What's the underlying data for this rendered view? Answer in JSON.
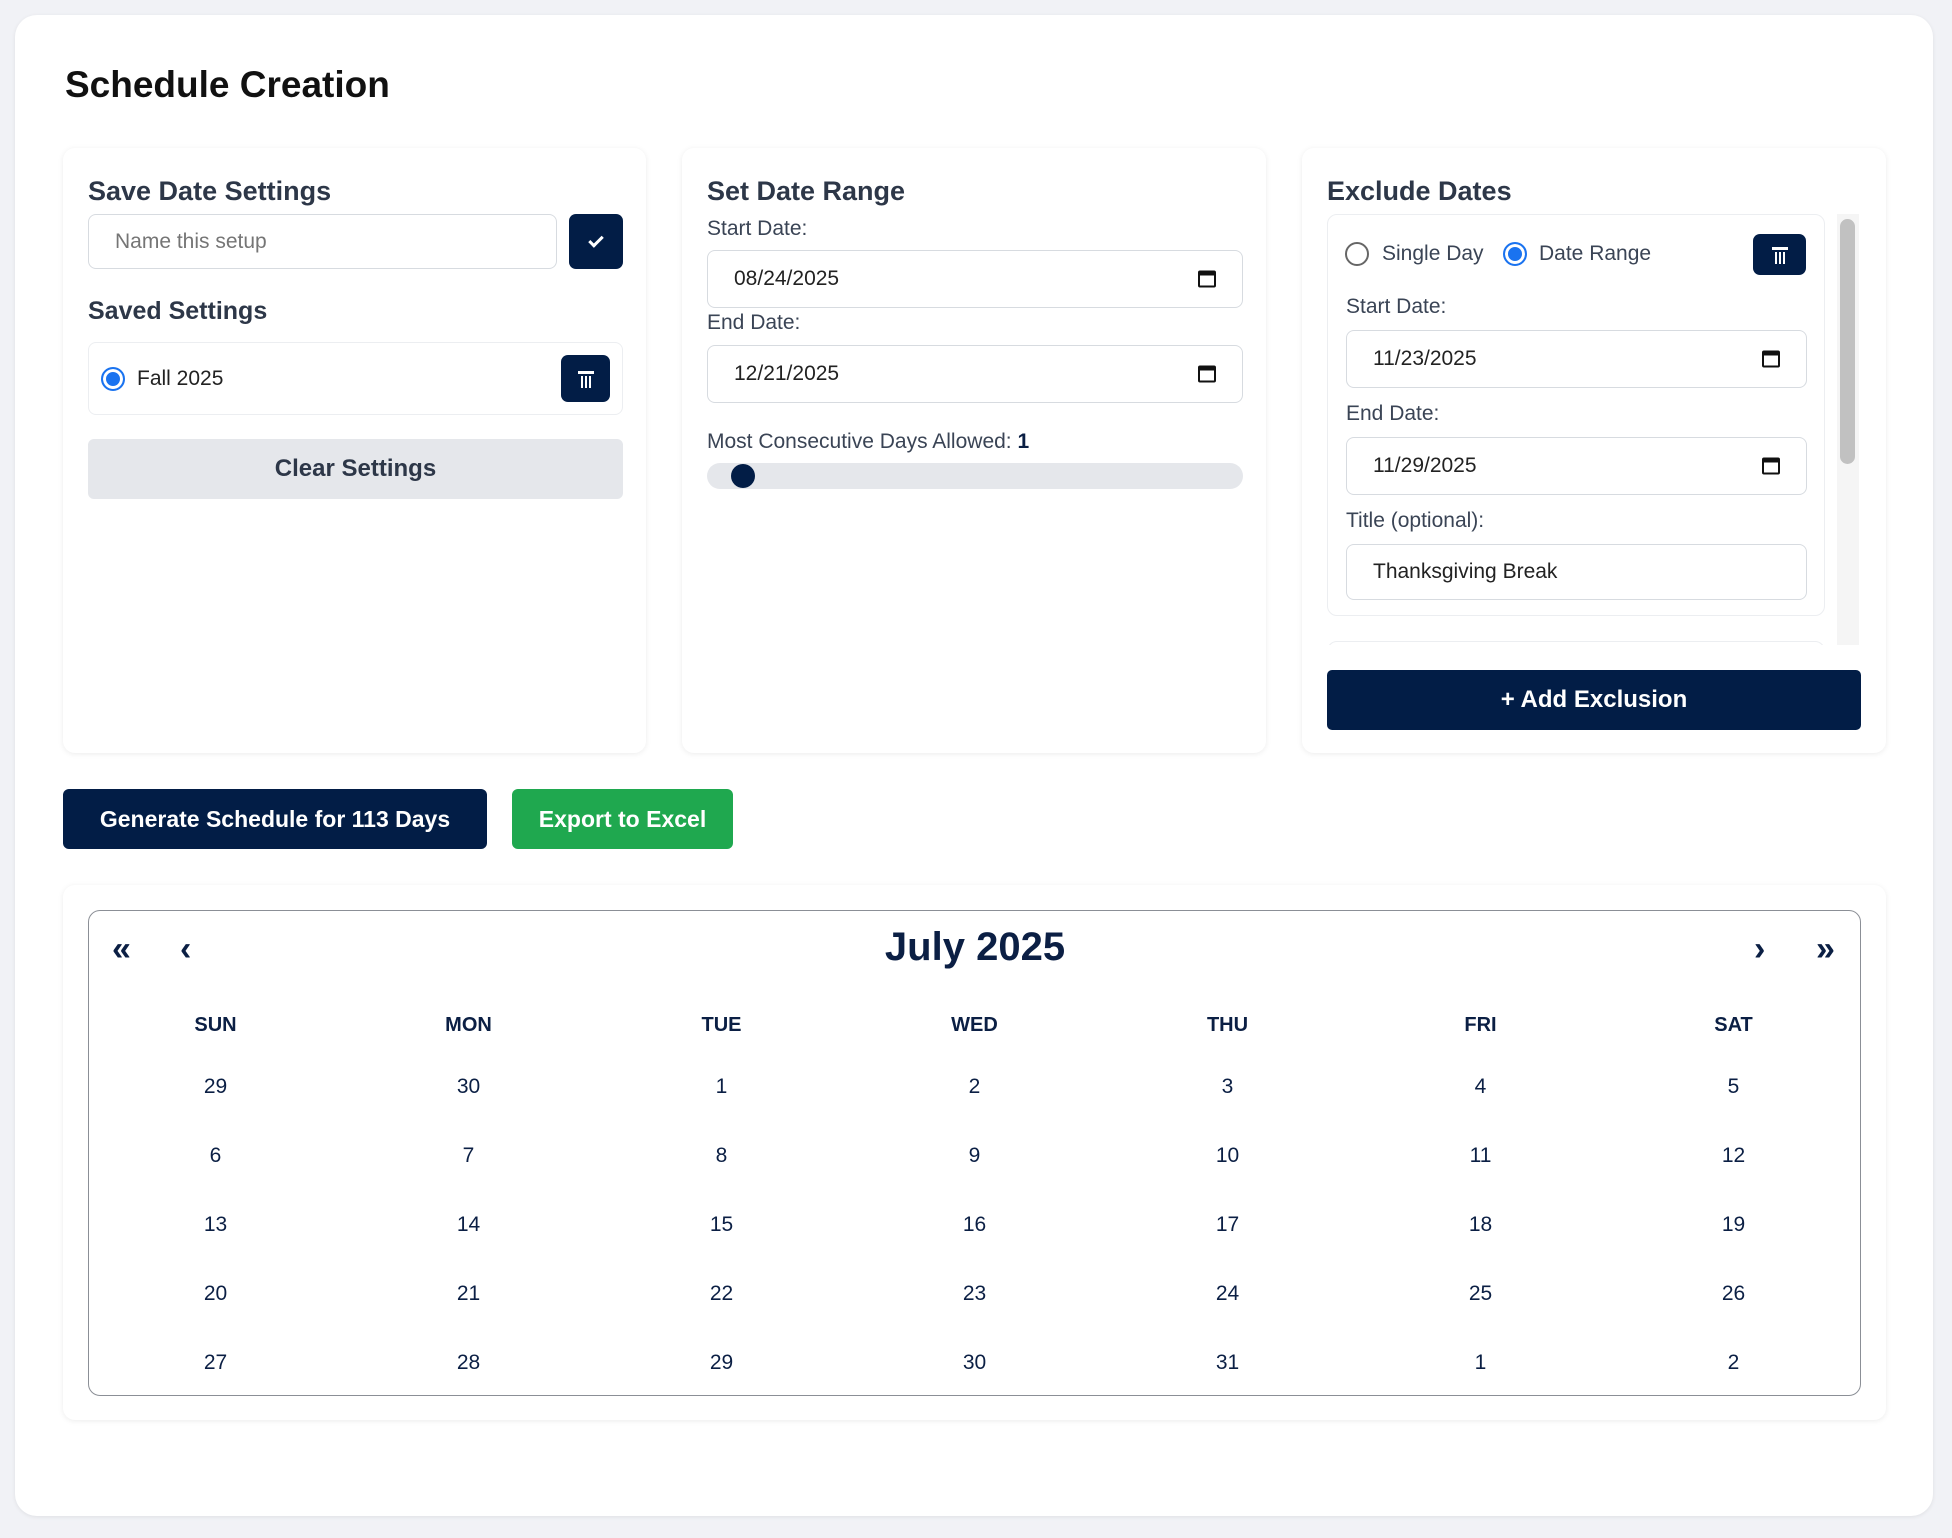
{
  "page_title": "Schedule Creation",
  "save_settings": {
    "heading": "Save Date Settings",
    "name_placeholder": "Name this setup",
    "name_value": "",
    "saved_heading": "Saved Settings",
    "saved_items": [
      {
        "label": "Fall 2025",
        "selected": true
      }
    ],
    "clear_label": "Clear Settings"
  },
  "date_range": {
    "heading": "Set Date Range",
    "start_label": "Start Date:",
    "start_value": "08/24/2025",
    "end_label": "End Date:",
    "end_value": "12/21/2025",
    "consecutive_label": "Most Consecutive Days Allowed:",
    "consecutive_value": "1",
    "slider_fraction": 0.0
  },
  "exclude": {
    "heading": "Exclude Dates",
    "mode_single": "Single Day",
    "mode_range": "Date Range",
    "selected_mode": "Date Range",
    "start_label": "Start Date:",
    "start_value": "11/23/2025",
    "end_label": "End Date:",
    "end_value": "11/29/2025",
    "title_label": "Title (optional):",
    "title_value": "Thanksgiving Break",
    "add_label": "+ Add Exclusion"
  },
  "actions": {
    "generate_label": "Generate Schedule for 113 Days",
    "export_label": "Export to Excel"
  },
  "calendar": {
    "month_label": "July 2025",
    "prev_year": "«",
    "prev_month": "‹",
    "next_month": "›",
    "next_year": "»",
    "weekdays": [
      "SUN",
      "MON",
      "TUE",
      "WED",
      "THU",
      "FRI",
      "SAT"
    ],
    "weeks": [
      [
        "29",
        "30",
        "1",
        "2",
        "3",
        "4",
        "5"
      ],
      [
        "6",
        "7",
        "8",
        "9",
        "10",
        "11",
        "12"
      ],
      [
        "13",
        "14",
        "15",
        "16",
        "17",
        "18",
        "19"
      ],
      [
        "20",
        "21",
        "22",
        "23",
        "24",
        "25",
        "26"
      ],
      [
        "27",
        "28",
        "29",
        "30",
        "31",
        "1",
        "2"
      ]
    ]
  },
  "colors": {
    "navy": "#021d46",
    "green": "#1fa84f",
    "radio": "#1a73f0"
  }
}
